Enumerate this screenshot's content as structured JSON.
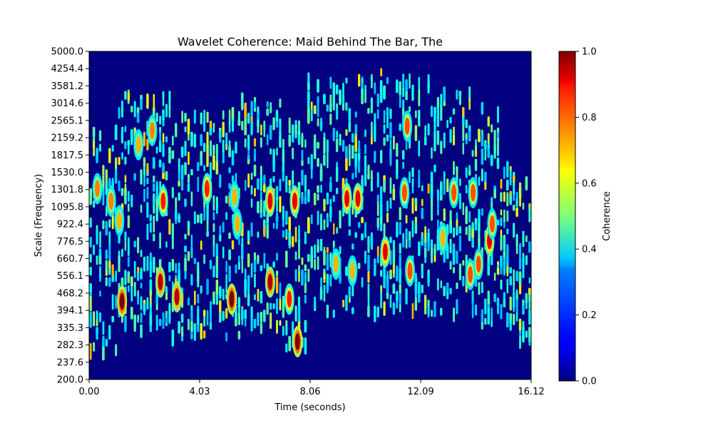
{
  "chart_data": {
    "type": "heatmap",
    "title": "Wavelet Coherence: Maid Behind The Bar, The",
    "xlabel": "Time (seconds)",
    "ylabel": "Scale (Frequency)",
    "x_ticks": [
      "0.00",
      "4.03",
      "8.06",
      "12.09",
      "16.12"
    ],
    "y_ticks": [
      "5000.0",
      "4254.4",
      "3581.2",
      "3014.6",
      "2565.1",
      "2159.2",
      "1817.5",
      "1530.0",
      "1301.8",
      "1095.8",
      "922.4",
      "776.5",
      "660.7",
      "556.1",
      "468.2",
      "394.1",
      "335.3",
      "282.3",
      "237.6",
      "200.0"
    ],
    "xlim": [
      0,
      16.12
    ],
    "ylim": [
      200,
      5000
    ],
    "colorbar": {
      "label": "Coherence",
      "ticks": [
        "0.0",
        "0.2",
        "0.4",
        "0.6",
        "0.8",
        "1.0"
      ],
      "range": [
        0,
        1
      ],
      "colormap": "jet"
    },
    "background_value": 0.0,
    "blobs": [
      {
        "t": 1.2,
        "s": 430,
        "v": 1.0
      },
      {
        "t": 2.6,
        "s": 520,
        "v": 0.95
      },
      {
        "t": 3.2,
        "s": 450,
        "v": 0.95
      },
      {
        "t": 5.2,
        "s": 440,
        "v": 1.0
      },
      {
        "t": 6.6,
        "s": 520,
        "v": 0.95
      },
      {
        "t": 7.3,
        "s": 440,
        "v": 0.85
      },
      {
        "t": 7.6,
        "s": 290,
        "v": 1.0
      },
      {
        "t": 6.6,
        "s": 1150,
        "v": 0.9
      },
      {
        "t": 7.5,
        "s": 1150,
        "v": 0.9
      },
      {
        "t": 4.3,
        "s": 1300,
        "v": 0.85
      },
      {
        "t": 2.7,
        "s": 1150,
        "v": 0.85
      },
      {
        "t": 0.3,
        "s": 1300,
        "v": 0.75
      },
      {
        "t": 0.8,
        "s": 1150,
        "v": 0.75
      },
      {
        "t": 9.4,
        "s": 1180,
        "v": 0.9
      },
      {
        "t": 9.8,
        "s": 1180,
        "v": 0.9
      },
      {
        "t": 10.8,
        "s": 700,
        "v": 0.9
      },
      {
        "t": 11.5,
        "s": 1250,
        "v": 0.8
      },
      {
        "t": 11.7,
        "s": 580,
        "v": 0.8
      },
      {
        "t": 13.3,
        "s": 1250,
        "v": 0.8
      },
      {
        "t": 14.0,
        "s": 1250,
        "v": 0.8
      },
      {
        "t": 13.9,
        "s": 560,
        "v": 0.8
      },
      {
        "t": 14.2,
        "s": 620,
        "v": 0.8
      },
      {
        "t": 14.6,
        "s": 780,
        "v": 0.9
      },
      {
        "t": 14.7,
        "s": 920,
        "v": 0.8
      },
      {
        "t": 11.6,
        "s": 2400,
        "v": 0.8
      },
      {
        "t": 2.3,
        "s": 2300,
        "v": 0.75
      },
      {
        "t": 1.8,
        "s": 2000,
        "v": 0.7
      },
      {
        "t": 5.3,
        "s": 1200,
        "v": 0.7
      },
      {
        "t": 5.4,
        "s": 920,
        "v": 0.7
      },
      {
        "t": 1.1,
        "s": 950,
        "v": 0.7
      },
      {
        "t": 9.0,
        "s": 620,
        "v": 0.7
      },
      {
        "t": 9.6,
        "s": 580,
        "v": 0.7
      },
      {
        "t": 12.9,
        "s": 800,
        "v": 0.7
      }
    ]
  }
}
